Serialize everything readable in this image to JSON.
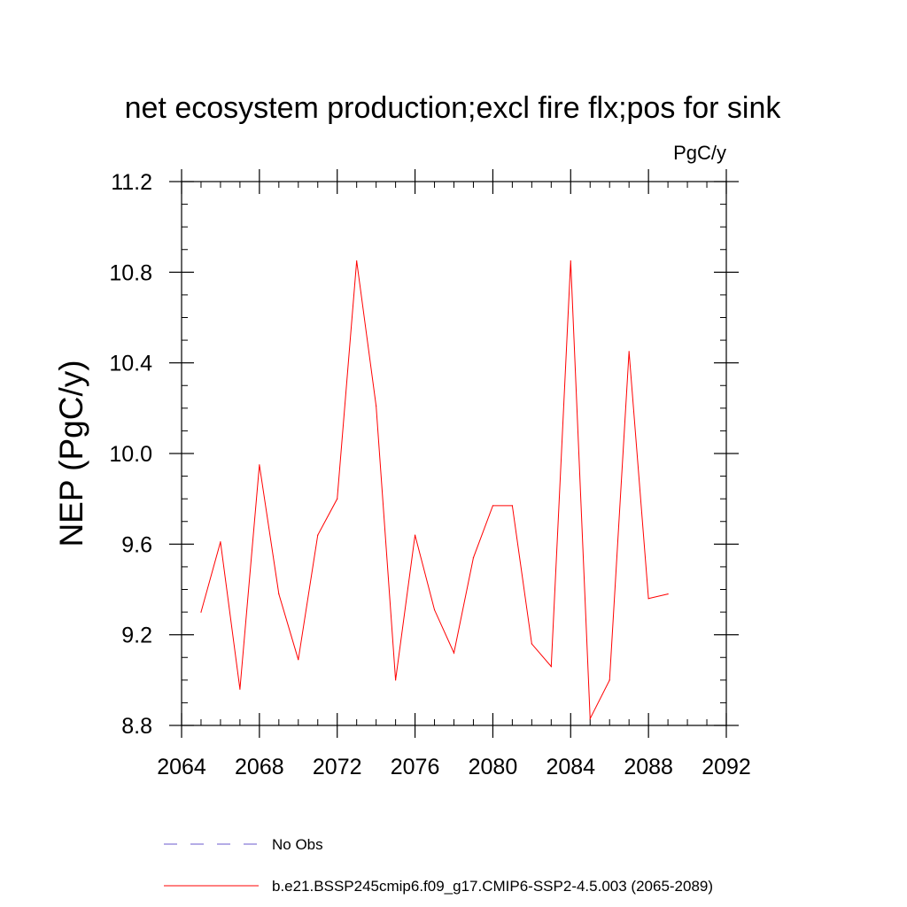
{
  "chart_data": {
    "type": "line",
    "title": "net ecosystem production;excl fire flx;pos for sink",
    "units_label": "PgC/y",
    "ylabel": "NEP  (PgC/y)",
    "xlabel": "",
    "xlim": [
      2064,
      2092
    ],
    "ylim": [
      8.8,
      11.2
    ],
    "x_major_ticks": [
      2064,
      2068,
      2072,
      2076,
      2080,
      2084,
      2088,
      2092
    ],
    "x_tick_labels": [
      "2064",
      "2068",
      "2072",
      "2076",
      "2080",
      "2084",
      "2088",
      "2092"
    ],
    "x_minor_step": 1,
    "y_major_ticks": [
      8.8,
      9.2,
      9.6,
      10.0,
      10.4,
      10.8,
      11.2
    ],
    "y_tick_labels": [
      "8.8",
      "9.2",
      "9.6",
      "10.0",
      "10.4",
      "10.8",
      "11.2"
    ],
    "y_minor_step": 0.1,
    "grid": false,
    "series": [
      {
        "name": "b.e21.BSSP245cmip6.f09_g17.CMIP6-SSP2-4.5.003 (2065-2089)",
        "color": "#ff0000",
        "dash": "solid",
        "x": [
          2065,
          2066,
          2067,
          2068,
          2069,
          2070,
          2071,
          2072,
          2073,
          2074,
          2075,
          2076,
          2077,
          2078,
          2079,
          2080,
          2081,
          2082,
          2083,
          2084,
          2085,
          2086,
          2087,
          2088,
          2089
        ],
        "values": [
          9.3,
          9.61,
          8.96,
          9.95,
          9.38,
          9.09,
          9.64,
          9.8,
          10.85,
          10.21,
          9.0,
          9.64,
          9.31,
          9.12,
          9.54,
          9.77,
          9.77,
          9.16,
          9.06,
          10.85,
          8.83,
          9.0,
          10.45,
          9.36,
          9.38
        ]
      }
    ],
    "legend": {
      "placement": "bottom",
      "entries": [
        {
          "label": "No Obs",
          "color": "#6a5acd",
          "dash": "dashed"
        },
        {
          "label": "b.e21.BSSP245cmip6.f09_g17.CMIP6-SSP2-4.5.003 (2065-2089)",
          "color": "#ff0000",
          "dash": "solid"
        }
      ]
    }
  }
}
